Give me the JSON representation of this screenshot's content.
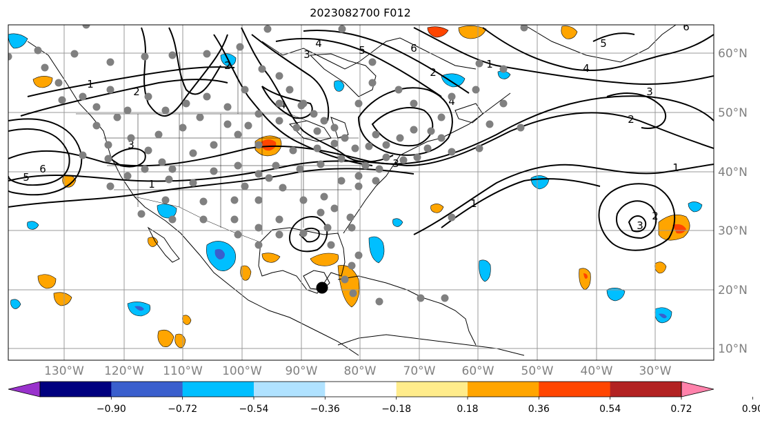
{
  "title": "2023082700 F012",
  "map": {
    "longitude_labels": [
      "130°W",
      "120°W",
      "110°W",
      "100°W",
      "90°W",
      "80°W",
      "70°W",
      "60°W",
      "50°W",
      "40°W",
      "30°W"
    ],
    "latitude_labels": [
      "60°N",
      "50°N",
      "40°N",
      "30°N",
      "20°N",
      "10°N"
    ],
    "contour_labels": [
      "1",
      "2",
      "3",
      "4",
      "5",
      "6",
      "1",
      "2",
      "3",
      "4",
      "5",
      "6",
      "1",
      "3",
      "4",
      "2",
      "1",
      "2",
      "3",
      "1",
      "2",
      "3",
      "4",
      "5",
      "6"
    ],
    "colors": {
      "land_outline": "#000000",
      "grid": "#999999",
      "station_dot": "#808080",
      "storm_marker": "#000000"
    }
  },
  "colorbar": {
    "ticks": [
      "−0.90",
      "−0.72",
      "−0.54",
      "−0.36",
      "−0.18",
      "0.18",
      "0.36",
      "0.54",
      "0.72",
      "0.90"
    ],
    "bins": [
      "#9932cc",
      "#00007f",
      "#3a5fcd",
      "#00bfff",
      "#b0e2ff",
      "#ffffff",
      "#ffec8b",
      "#ffa500",
      "#ff4500",
      "#b22222",
      "#ff82ab"
    ]
  }
}
